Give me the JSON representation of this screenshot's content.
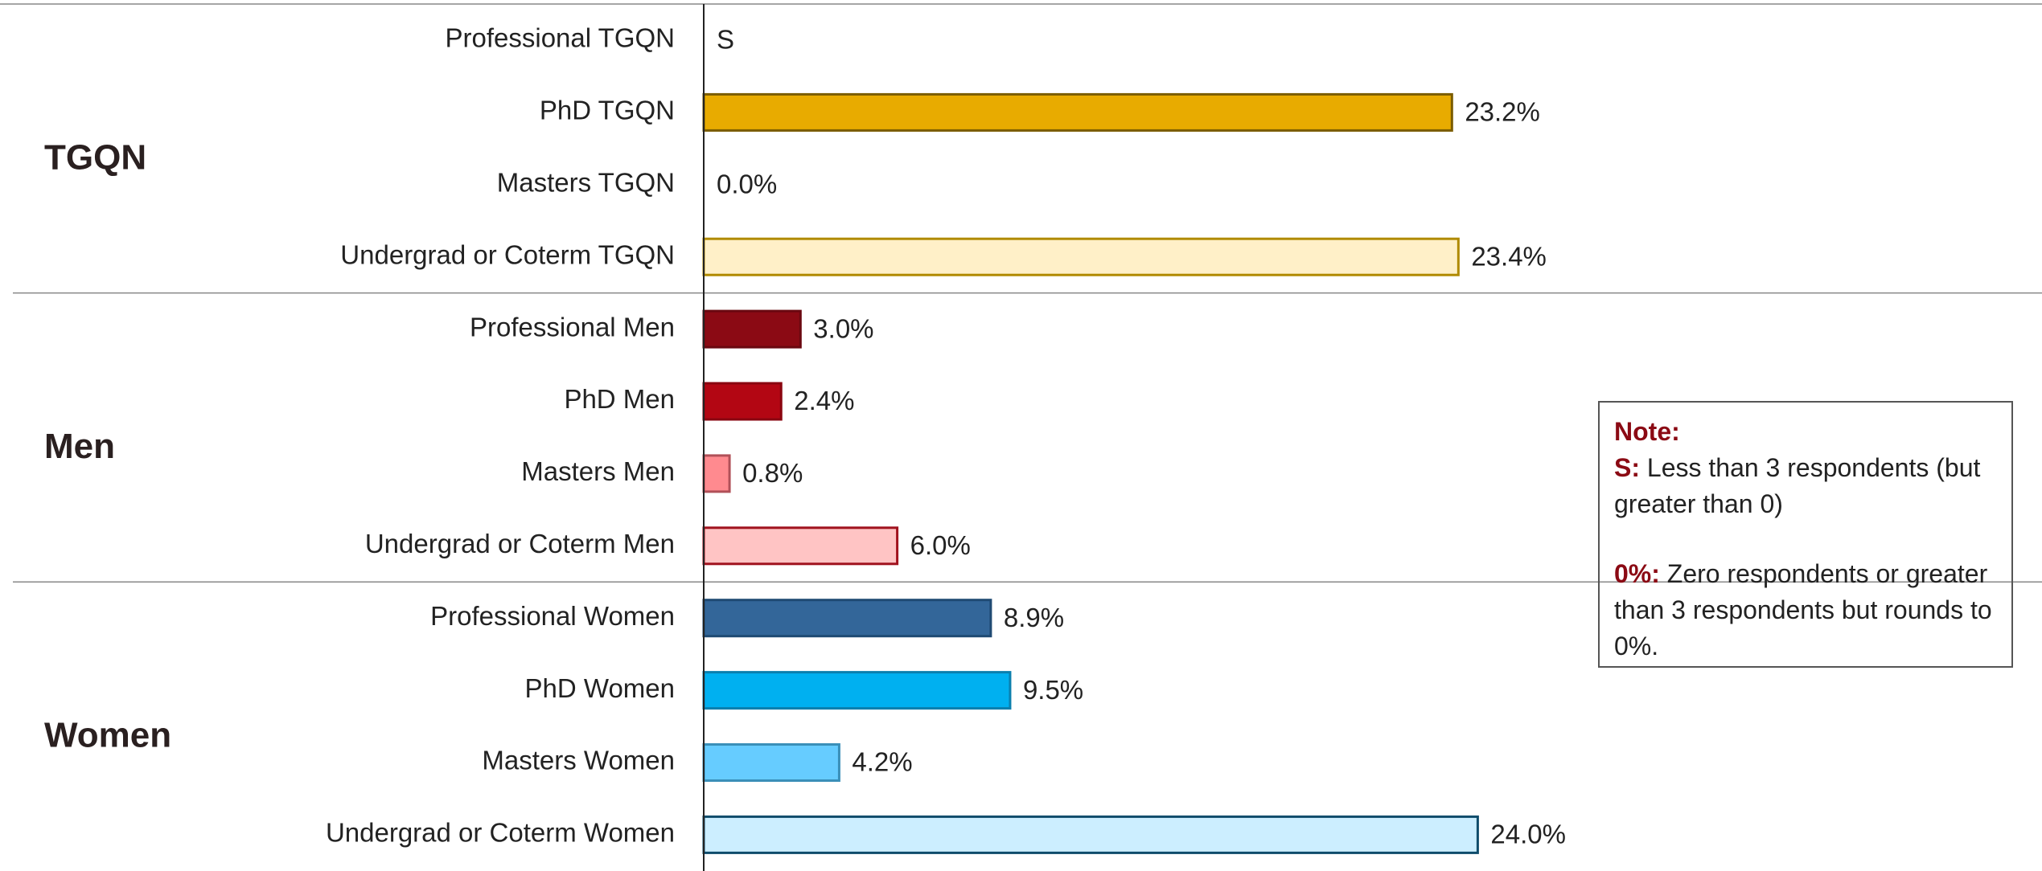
{
  "chart_data": {
    "type": "bar",
    "groups": [
      {
        "name": "TGQN",
        "categories": [
          "Professional TGQN",
          "PhD TGQN",
          "Masters TGQN",
          "Undergrad or Coterm TGQN"
        ],
        "values": [
          null,
          23.2,
          0,
          23.4
        ],
        "value_labels": [
          "S",
          "23.2%",
          "0.0%",
          "23.4%"
        ],
        "colors": [
          null,
          "#E8AB00",
          null,
          "#FFF0C8"
        ],
        "edge_colors": [
          null,
          "#7a5c00",
          null,
          "#B08A00"
        ]
      },
      {
        "name": "Men",
        "categories": [
          "Professional Men",
          "PhD Men",
          "Masters Men",
          "Undergrad or Coterm Men"
        ],
        "values": [
          3.0,
          2.4,
          0.8,
          6.0
        ],
        "value_labels": [
          "3.0%",
          "2.4%",
          "0.8%",
          "6.0%"
        ],
        "colors": [
          "#8B0A14",
          "#B30613",
          "#FF8A8F",
          "#FFC4C4"
        ],
        "edge_colors": [
          "#6a0810",
          "#8a0510",
          "#b05058",
          "#A0121E"
        ]
      },
      {
        "name": "Women",
        "categories": [
          "Professional Women",
          "PhD Women",
          "Masters Women",
          "Undergrad or Coterm Women"
        ],
        "values": [
          8.9,
          9.5,
          4.2,
          24.0
        ],
        "value_labels": [
          "8.9%",
          "9.5%",
          "4.2%",
          "24.0%"
        ],
        "colors": [
          "#336699",
          "#00B0F0",
          "#66CCFF",
          "#CCEEFF"
        ],
        "edge_colors": [
          "#1f4a73",
          "#0a7fae",
          "#3a8fb8",
          "#0F4C6B"
        ]
      }
    ],
    "note": {
      "title": "Note:",
      "items": [
        {
          "key": "S:",
          "text": "Less than 3 respondents (but greater than 0)"
        },
        {
          "key": "0%:",
          "text": "Zero respondents or greater than 3 respondents but rounds to 0%."
        }
      ]
    }
  }
}
